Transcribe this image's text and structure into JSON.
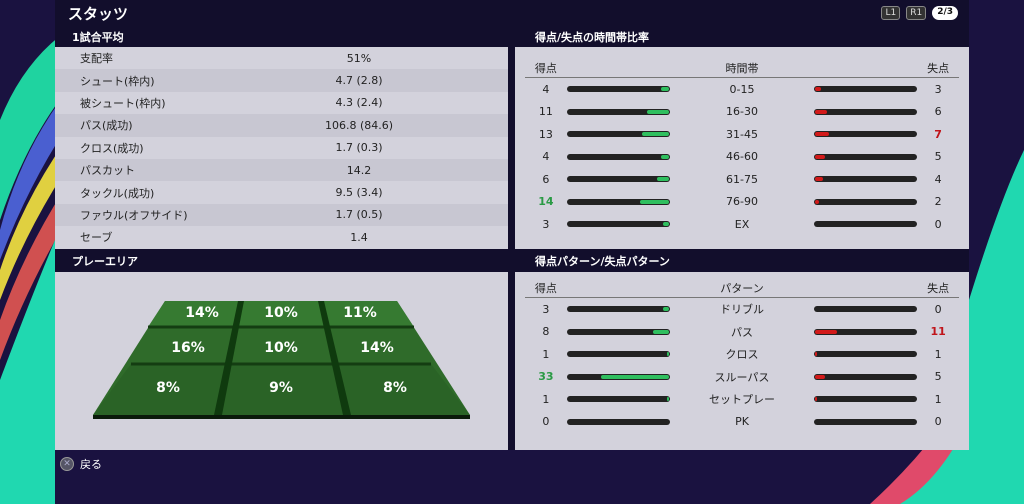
{
  "header": {
    "title": "スタッツ",
    "l1": "L1",
    "r1": "R1",
    "page": "2/3"
  },
  "match_avg": {
    "title": "1試合平均",
    "rows": [
      {
        "label": "支配率",
        "value": "51%"
      },
      {
        "label": "シュート(枠内)",
        "value": "4.7 (2.8)"
      },
      {
        "label": "被シュート(枠内)",
        "value": "4.3 (2.4)"
      },
      {
        "label": "パス(成功)",
        "value": "106.8 (84.6)"
      },
      {
        "label": "クロス(成功)",
        "value": "1.7 (0.3)"
      },
      {
        "label": "パスカット",
        "value": "14.2"
      },
      {
        "label": "タックル(成功)",
        "value": "9.5 (3.4)"
      },
      {
        "label": "ファウル(オフサイド)",
        "value": "1.7 (0.5)"
      },
      {
        "label": "セーブ",
        "value": "1.4"
      }
    ]
  },
  "play_area": {
    "title": "プレーエリア",
    "cells": [
      "14%",
      "10%",
      "11%",
      "16%",
      "10%",
      "14%",
      "8%",
      "9%",
      "8%"
    ]
  },
  "time_ratio": {
    "title": "得点/失点の時間帯比率",
    "col_for": "得点",
    "col_mid": "時間帯",
    "col_against": "失点",
    "rows": [
      {
        "label": "0-15",
        "for": 4,
        "against": 3
      },
      {
        "label": "16-30",
        "for": 11,
        "against": 6
      },
      {
        "label": "31-45",
        "for": 13,
        "against": 7,
        "hi_against": true
      },
      {
        "label": "46-60",
        "for": 4,
        "against": 5
      },
      {
        "label": "61-75",
        "for": 6,
        "against": 4
      },
      {
        "label": "76-90",
        "for": 14,
        "against": 2,
        "hi_for": true
      },
      {
        "label": "EX",
        "for": 3,
        "against": 0
      }
    ]
  },
  "patterns": {
    "title": "得点パターン/失点パターン",
    "col_for": "得点",
    "col_mid": "パターン",
    "col_against": "失点",
    "rows": [
      {
        "label": "ドリブル",
        "for": 3,
        "against": 0
      },
      {
        "label": "パス",
        "for": 8,
        "against": 11,
        "hi_against": true
      },
      {
        "label": "クロス",
        "for": 1,
        "against": 1
      },
      {
        "label": "スルーパス",
        "for": 33,
        "against": 5,
        "hi_for": true
      },
      {
        "label": "セットプレー",
        "for": 1,
        "against": 1
      },
      {
        "label": "PK",
        "for": 0,
        "against": 0
      }
    ]
  },
  "footer": {
    "back_label": "戻る",
    "back_icon": "cross-button-icon"
  },
  "colors": {
    "for": "#2fbf5f",
    "against": "#d21a1a"
  }
}
